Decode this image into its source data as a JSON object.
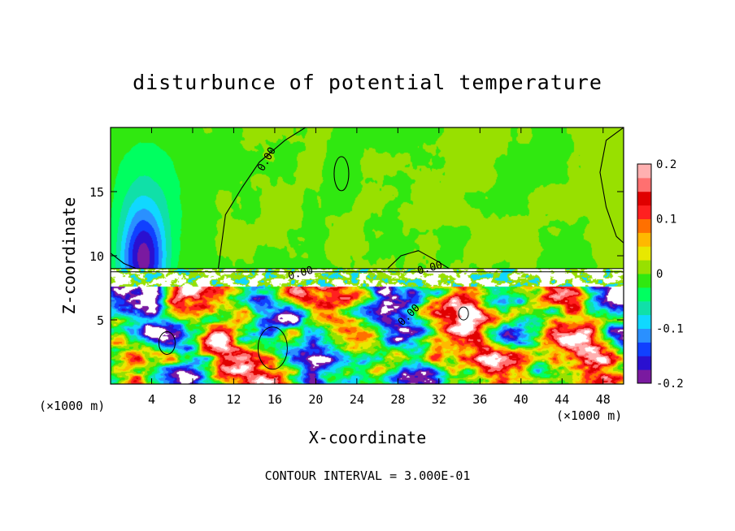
{
  "chart_data": {
    "type": "heatmap",
    "title": "disturbunce of potential temperature",
    "xlabel": "X-coordinate",
    "ylabel": "Z-coordinate",
    "x_unit_left": "(×1000 m)",
    "x_unit_right": "(×1000 m)",
    "footer": "CONTOUR INTERVAL = 3.000E-01",
    "xlim": [
      0,
      50
    ],
    "ylim": [
      0,
      20
    ],
    "x_ticks": [
      "4",
      "8",
      "12",
      "16",
      "20",
      "24",
      "28",
      "32",
      "36",
      "40",
      "44",
      "48"
    ],
    "x_tick_values": [
      4,
      8,
      12,
      16,
      20,
      24,
      28,
      32,
      36,
      40,
      44,
      48
    ],
    "y_ticks": [
      "5",
      "10",
      "15"
    ],
    "y_tick_values": [
      5,
      10,
      15
    ],
    "colorbar": {
      "ticks": [
        "0.2",
        "0.1",
        "0",
        "-0.1",
        "-0.2"
      ],
      "tick_values": [
        0.2,
        0.1,
        0,
        -0.1,
        -0.2
      ],
      "range": [
        -0.2,
        0.2
      ],
      "colors": [
        "#7a1aa0",
        "#2a10d0",
        "#1040ff",
        "#2a90ff",
        "#10d8ff",
        "#10e0a8",
        "#00ff60",
        "#30e810",
        "#98e000",
        "#e8e800",
        "#ffb800",
        "#ff7000",
        "#ff2020",
        "#e00000",
        "#ff7070",
        "#ffb0b0"
      ]
    },
    "contour_labels": [
      "0.00",
      "0.00",
      "0.00",
      "0.00"
    ],
    "contour_label_positions": [
      [
        15.5,
        17.4
      ],
      [
        18.6,
        8.4
      ],
      [
        31.2,
        8.8
      ],
      [
        29.3,
        5.2
      ]
    ],
    "field": {
      "upper_layer_base_value": 0.0,
      "upper_anomalies": [
        {
          "x": 3.2,
          "z": 9.6,
          "sx": 2.2,
          "sz": 3.8,
          "value": -0.17
        },
        {
          "x": 3.6,
          "z": 14.5,
          "sx": 3.8,
          "sz": 5.5,
          "value": -0.045
        },
        {
          "x": 22.5,
          "z": 16.5,
          "sx": 1.2,
          "sz": 2.2,
          "value": -0.02
        },
        {
          "x": 49.5,
          "z": 16,
          "sx": 2.0,
          "sz": 5.0,
          "value": 0.01
        }
      ],
      "interface_z": 9.0,
      "lower_layer_top": 7.6
    }
  }
}
